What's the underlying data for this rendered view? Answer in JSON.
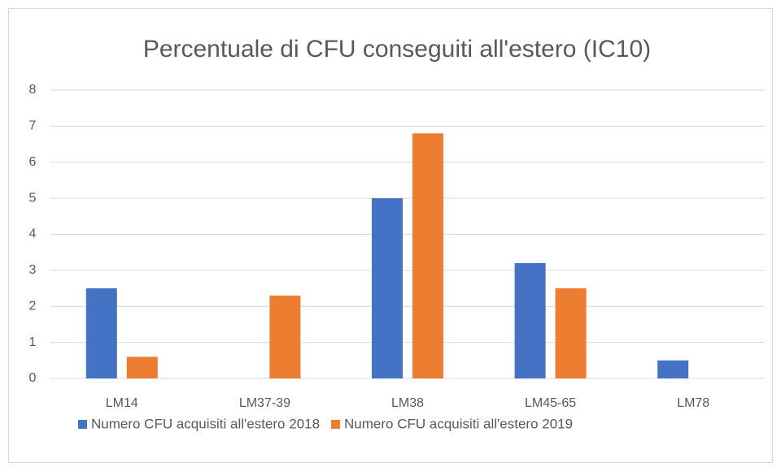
{
  "chart_data": {
    "type": "bar",
    "title": "Percentuale di CFU conseguiti all'estero  (IC10)",
    "categories": [
      "LM14",
      "LM37-39",
      "LM38",
      "LM45-65",
      "LM78"
    ],
    "series": [
      {
        "name": "Numero CFU acquisiti all'estero 2018",
        "color": "#4472c4",
        "values": [
          2.5,
          0,
          5,
          3.2,
          0.5
        ]
      },
      {
        "name": "Numero CFU acquisiti all'estero 2019",
        "color": "#ed7d31",
        "values": [
          0.6,
          2.3,
          6.8,
          2.5,
          0
        ]
      }
    ],
    "ylim": [
      0,
      8
    ],
    "yticks": [
      0,
      1,
      2,
      3,
      4,
      5,
      6,
      7,
      8
    ],
    "grid": true,
    "legend": "bottom"
  }
}
